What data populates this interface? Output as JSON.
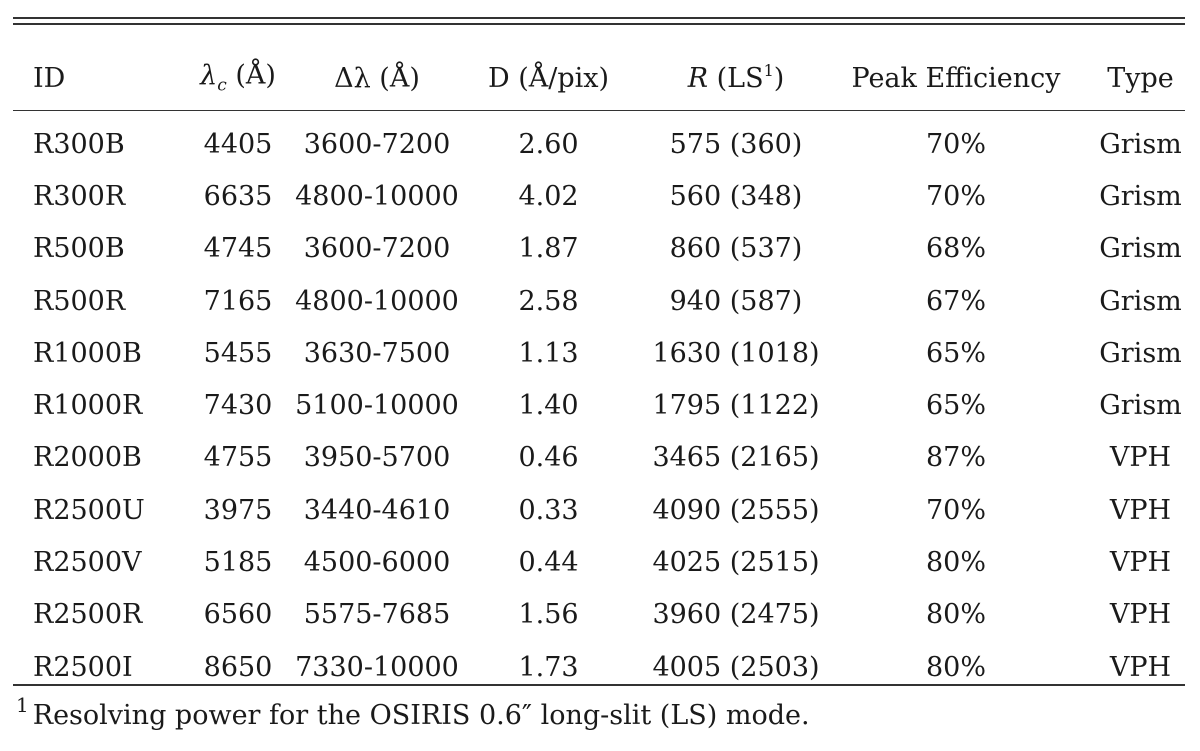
{
  "header": {
    "id": "ID",
    "lambda_sym": "λ",
    "lambda_sub": "c",
    "lambda_unit": " (Å)",
    "dlambda": "Δλ (Å)",
    "dispersion": "D (Å/pix)",
    "r_sym": "R",
    "r_open": " (LS",
    "r_sup": "1",
    "r_close": ")",
    "efficiency": "Peak Efficiency",
    "type": "Type"
  },
  "rows": [
    {
      "id": "R300B",
      "lc": "4405",
      "dl": "3600-7200",
      "d": "2.60",
      "r": "575 (360)",
      "pe": "70%",
      "type": "Grism"
    },
    {
      "id": "R300R",
      "lc": "6635",
      "dl": "4800-10000",
      "d": "4.02",
      "r": "560 (348)",
      "pe": "70%",
      "type": "Grism"
    },
    {
      "id": "R500B",
      "lc": "4745",
      "dl": "3600-7200",
      "d": "1.87",
      "r": "860 (537)",
      "pe": "68%",
      "type": "Grism"
    },
    {
      "id": "R500R",
      "lc": "7165",
      "dl": "4800-10000",
      "d": "2.58",
      "r": "940 (587)",
      "pe": "67%",
      "type": "Grism"
    },
    {
      "id": "R1000B",
      "lc": "5455",
      "dl": "3630-7500",
      "d": "1.13",
      "r": "1630 (1018)",
      "pe": "65%",
      "type": "Grism"
    },
    {
      "id": "R1000R",
      "lc": "7430",
      "dl": "5100-10000",
      "d": "1.40",
      "r": "1795 (1122)",
      "pe": "65%",
      "type": "Grism"
    },
    {
      "id": "R2000B",
      "lc": "4755",
      "dl": "3950-5700",
      "d": "0.46",
      "r": "3465 (2165)",
      "pe": "87%",
      "type": "VPH"
    },
    {
      "id": "R2500U",
      "lc": "3975",
      "dl": "3440-4610",
      "d": "0.33",
      "r": "4090 (2555)",
      "pe": "70%",
      "type": "VPH"
    },
    {
      "id": "R2500V",
      "lc": "5185",
      "dl": "4500-6000",
      "d": "0.44",
      "r": "4025 (2515)",
      "pe": "80%",
      "type": "VPH"
    },
    {
      "id": "R2500R",
      "lc": "6560",
      "dl": "5575-7685",
      "d": "1.56",
      "r": "3960 (2475)",
      "pe": "80%",
      "type": "VPH"
    },
    {
      "id": "R2500I",
      "lc": "8650",
      "dl": "7330-10000",
      "d": "1.73",
      "r": "4005 (2503)",
      "pe": "80%",
      "type": "VPH"
    }
  ],
  "footnote": {
    "marker": "1",
    "text": "Resolving power for the OSIRIS 0.6″ long-slit (LS) mode."
  }
}
